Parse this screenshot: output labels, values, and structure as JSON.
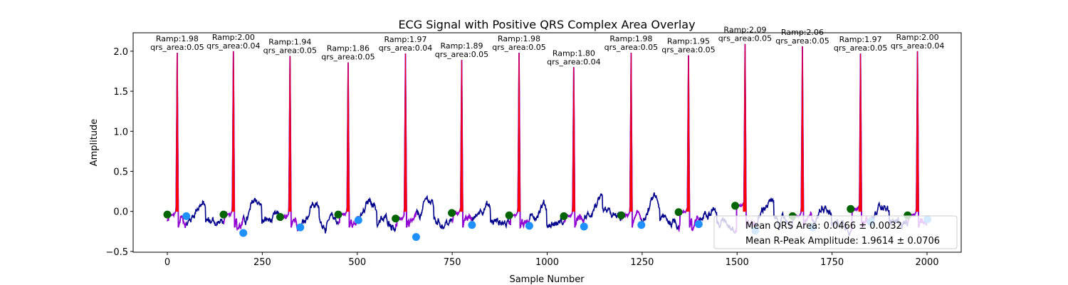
{
  "chart_data": {
    "type": "line",
    "title": "ECG Signal with Positive QRS Complex Area Overlay",
    "xlabel": "Sample Number",
    "ylabel": "Amplitude",
    "xlim": [
      -90,
      2090
    ],
    "ylim": [
      -0.51,
      2.23
    ],
    "xticks": [
      0,
      250,
      500,
      750,
      1000,
      1250,
      1500,
      1750,
      2000
    ],
    "yticks": [
      -0.5,
      0.0,
      0.5,
      1.0,
      1.5,
      2.0
    ],
    "xtick_labels": [
      "0",
      "250",
      "500",
      "750",
      "1000",
      "1250",
      "1500",
      "1750",
      "2000"
    ],
    "ytick_labels": [
      "−0.5",
      "0.0",
      "0.5",
      "1.0",
      "1.5",
      "2.0"
    ],
    "grid": false,
    "legend_position": "lower-right",
    "colors": {
      "signal": "#00008b",
      "qrs_segment": "#9400d3",
      "qrs_fill": "#ff0000",
      "onset_marker": "#006400",
      "offset_marker": "#1e90ff"
    },
    "beats": [
      {
        "r_sample": 26,
        "ramp": 1.98,
        "ramp_label": "Ramp:1.98",
        "area_label": "qrs_area:0.05",
        "onset": [
          0,
          -0.04
        ],
        "offset": [
          50,
          -0.06
        ]
      },
      {
        "r_sample": 174,
        "ramp": 2.0,
        "ramp_label": "Ramp:2.00",
        "area_label": "qrs_area:0.04",
        "onset": [
          148,
          -0.04
        ],
        "offset": [
          200,
          -0.27
        ]
      },
      {
        "r_sample": 323,
        "ramp": 1.94,
        "ramp_label": "Ramp:1.94",
        "area_label": "qrs_area:0.05",
        "onset": [
          297,
          -0.07
        ],
        "offset": [
          350,
          -0.2
        ]
      },
      {
        "r_sample": 476,
        "ramp": 1.86,
        "ramp_label": "Ramp:1.86",
        "area_label": "qrs_area:0.05",
        "onset": [
          450,
          -0.04
        ],
        "offset": [
          503,
          -0.11
        ]
      },
      {
        "r_sample": 627,
        "ramp": 1.97,
        "ramp_label": "Ramp:1.97",
        "area_label": "qrs_area:0.04",
        "onset": [
          601,
          -0.09
        ],
        "offset": [
          655,
          -0.32
        ]
      },
      {
        "r_sample": 775,
        "ramp": 1.89,
        "ramp_label": "Ramp:1.89",
        "area_label": "qrs_area:0.05",
        "onset": [
          749,
          -0.02
        ],
        "offset": [
          802,
          -0.17
        ]
      },
      {
        "r_sample": 926,
        "ramp": 1.98,
        "ramp_label": "Ramp:1.98",
        "area_label": "qrs_area:0.05",
        "onset": [
          900,
          -0.05
        ],
        "offset": [
          953,
          -0.18
        ]
      },
      {
        "r_sample": 1070,
        "ramp": 1.8,
        "ramp_label": "Ramp:1.80",
        "area_label": "qrs_area:0.04",
        "onset": [
          1044,
          -0.06
        ],
        "offset": [
          1097,
          -0.19
        ]
      },
      {
        "r_sample": 1221,
        "ramp": 1.98,
        "ramp_label": "Ramp:1.98",
        "area_label": "qrs_area:0.05",
        "onset": [
          1195,
          -0.05
        ],
        "offset": [
          1248,
          -0.17
        ]
      },
      {
        "r_sample": 1372,
        "ramp": 1.95,
        "ramp_label": "Ramp:1.95",
        "area_label": "qrs_area:0.05",
        "onset": [
          1346,
          -0.01
        ],
        "offset": [
          1399,
          -0.16
        ]
      },
      {
        "r_sample": 1521,
        "ramp": 2.09,
        "ramp_label": "Ramp:2.09",
        "area_label": "qrs_area:0.05",
        "onset": [
          1495,
          0.07
        ],
        "offset": [
          1548,
          -0.24
        ]
      },
      {
        "r_sample": 1672,
        "ramp": 2.06,
        "ramp_label": "Ramp:2.06",
        "area_label": "qrs_area:0.05",
        "onset": [
          1646,
          -0.06
        ],
        "offset": [
          1699,
          -0.2
        ]
      },
      {
        "r_sample": 1825,
        "ramp": 1.97,
        "ramp_label": "Ramp:1.97",
        "area_label": "qrs_area:0.05",
        "onset": [
          1799,
          0.03
        ],
        "offset": [
          1852,
          -0.13
        ]
      },
      {
        "r_sample": 1975,
        "ramp": 2.0,
        "ramp_label": "Ramp:2.00",
        "area_label": "qrs_area:0.04",
        "onset": [
          1949,
          -0.05
        ],
        "offset": [
          2001,
          -0.1
        ]
      }
    ],
    "legend": [
      "Mean QRS Area: 0.0466 ± 0.0032",
      "Mean R-Peak Amplitude: 1.9614 ± 0.0706"
    ]
  }
}
